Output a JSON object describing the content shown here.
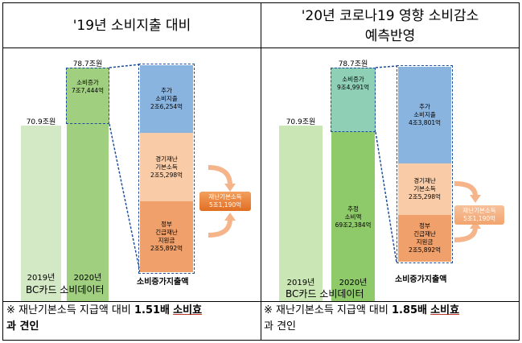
{
  "left": {
    "title": "'19년 소비지출 대비",
    "bar_2019_label": "70.9조원",
    "bar_2020_label": "78.7조원",
    "increase_text": "소비증가\n7조7,444억",
    "breakdown": {
      "additional": "추가\n소비지출\n2조6,254억",
      "subsidy": "경기재난\n기본소득\n2조5,298억",
      "gov": "정부\n긴급재난\n지원금\n2조5,892억"
    },
    "pill_text": "재난기본소득\n5조1,190억",
    "year_2019": "2019년",
    "year_2020": "2020년",
    "source": "BC카드 소비데이터",
    "breakdown_caption": "소비증가지출액",
    "note_prefix": "※ 재난기본소득 지급액 대비 ",
    "note_bold": "1.51배",
    "note_suffix_ul": "소비효",
    "note_line2": "과 견인"
  },
  "right": {
    "title_line1": "'20년 코로나19 영향 소비감소",
    "title_line2": "예측반영",
    "bar_2019_label": "70.9조원",
    "bar_2020_label": "78.7조원",
    "increase_text": "소비증가\n9조4,991억",
    "estimated_text": "추정\n소비액\n69조2,384억",
    "breakdown": {
      "additional": "추가\n소비지출\n4조3,801억",
      "subsidy": "경기재난\n기본소득\n2조5,298억",
      "gov": "정부\n긴급재난\n지원금\n2조5,892억"
    },
    "pill_text": "재난기본소득\n5조1,190억",
    "year_2019": "2019년",
    "year_2020": "2020년",
    "source": "BC카드 소비데이터",
    "breakdown_caption": "소비증가지출액",
    "note_prefix": "※ 재난기본소득 지급액 대비 ",
    "note_bold": "1.85배",
    "note_suffix_ul": "소비효",
    "note_line2": "과 견인"
  },
  "colors": {
    "light_green": "#d3e8c4",
    "mid_green": "#9fcf7f",
    "teal": "#8fcfb6",
    "blue": "#8ab4e0",
    "peach": "#f9cba7",
    "orange": "#f0a06a",
    "pill": "#e16e22",
    "border": "#1f4e9c"
  }
}
